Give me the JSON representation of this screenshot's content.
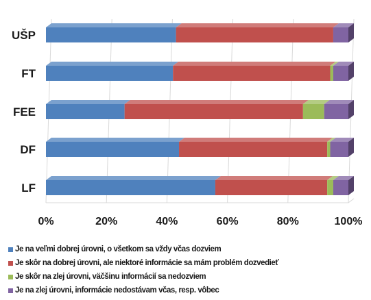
{
  "chart_data": {
    "type": "bar",
    "orientation": "horizontal",
    "stacked": "percent",
    "three_d": true,
    "categories": [
      "UŠP",
      "FT",
      "FEE",
      "DF",
      "LF"
    ],
    "series": [
      {
        "name": "Je na veľmi dobrej úrovni, o všetkom sa vždy včas dozviem",
        "color": "#4f81bd",
        "values": [
          43,
          42,
          26,
          44,
          56
        ]
      },
      {
        "name": "Je skôr na dobrej úrovni, ale niektoré informácie sa mám problém dozvedieť",
        "color": "#c0504d",
        "values": [
          52,
          52,
          59,
          49,
          37
        ]
      },
      {
        "name": "Je skôr na zlej úrovni, väčšinu informácií sa nedozviem",
        "color": "#9bbb59",
        "values": [
          0,
          1,
          7,
          1,
          2
        ]
      },
      {
        "name": "Je na zlej úrovni, informácie nedostávam včas, resp. vôbec",
        "color": "#8064a2",
        "values": [
          5,
          5,
          8,
          6,
          5
        ]
      }
    ],
    "xlim": [
      0,
      100
    ],
    "xticks": [
      "0%",
      "20%",
      "40%",
      "60%",
      "80%",
      "100%"
    ],
    "grid": true,
    "legend_position": "bottom"
  }
}
